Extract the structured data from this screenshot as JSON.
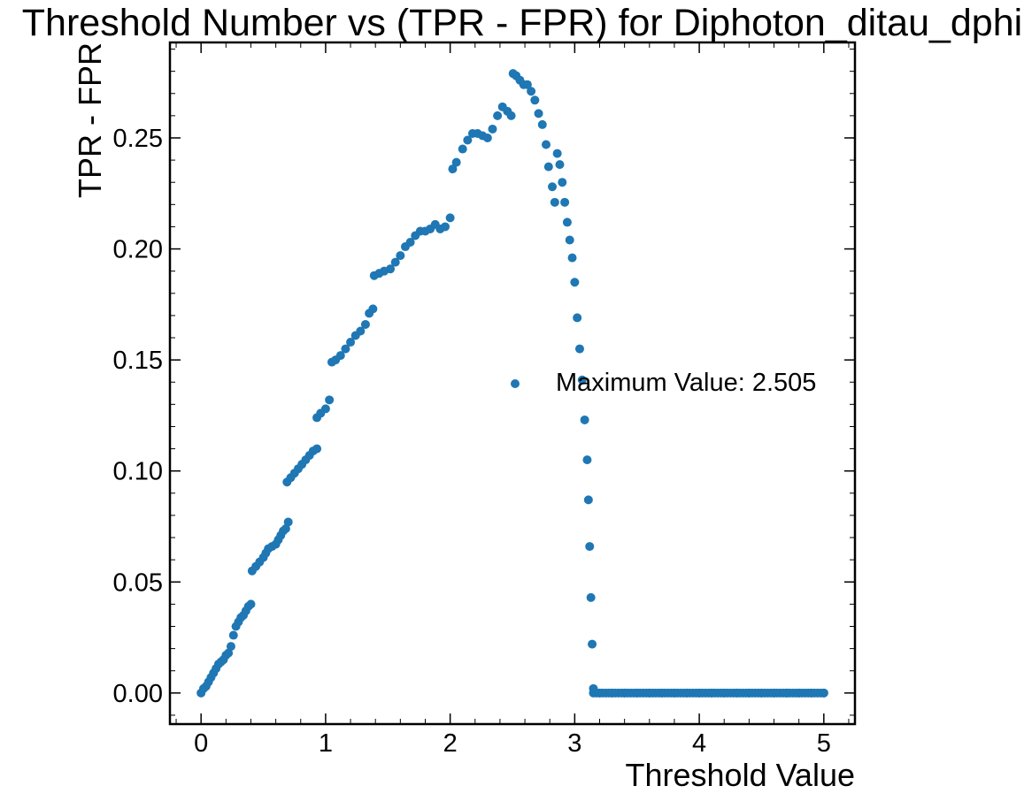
{
  "chart_data": {
    "type": "scatter",
    "title": "Threshold Number vs (TPR - FPR) for Diphoton_ditau_dphi",
    "xlabel": "Threshold Value",
    "ylabel": "TPR - FPR",
    "xlim": [
      -0.25,
      5.25
    ],
    "ylim": [
      -0.014,
      0.293
    ],
    "xticks": [
      "0",
      "1",
      "2",
      "3",
      "4",
      "5"
    ],
    "yticks": [
      "0.00",
      "0.05",
      "0.10",
      "0.15",
      "0.20",
      "0.25"
    ],
    "legend_position": "center-right",
    "grid": false,
    "marker_color": "#1f77b4",
    "series": [
      {
        "name": "Maximum Value: 2.505",
        "points": [
          [
            0.0,
            0.0
          ],
          [
            0.02,
            0.002
          ],
          [
            0.04,
            0.003
          ],
          [
            0.06,
            0.005
          ],
          [
            0.08,
            0.007
          ],
          [
            0.1,
            0.009
          ],
          [
            0.12,
            0.011
          ],
          [
            0.14,
            0.013
          ],
          [
            0.16,
            0.014
          ],
          [
            0.18,
            0.015
          ],
          [
            0.2,
            0.017
          ],
          [
            0.22,
            0.018
          ],
          [
            0.24,
            0.021
          ],
          [
            0.26,
            0.026
          ],
          [
            0.28,
            0.03
          ],
          [
            0.3,
            0.032
          ],
          [
            0.32,
            0.034
          ],
          [
            0.34,
            0.035
          ],
          [
            0.36,
            0.037
          ],
          [
            0.38,
            0.039
          ],
          [
            0.4,
            0.04
          ],
          [
            0.41,
            0.055
          ],
          [
            0.44,
            0.057
          ],
          [
            0.47,
            0.059
          ],
          [
            0.5,
            0.061
          ],
          [
            0.52,
            0.063
          ],
          [
            0.54,
            0.065
          ],
          [
            0.57,
            0.066
          ],
          [
            0.6,
            0.067
          ],
          [
            0.62,
            0.069
          ],
          [
            0.64,
            0.071
          ],
          [
            0.66,
            0.073
          ],
          [
            0.68,
            0.074
          ],
          [
            0.7,
            0.077
          ],
          [
            0.69,
            0.095
          ],
          [
            0.72,
            0.097
          ],
          [
            0.75,
            0.099
          ],
          [
            0.78,
            0.101
          ],
          [
            0.81,
            0.103
          ],
          [
            0.84,
            0.105
          ],
          [
            0.87,
            0.107
          ],
          [
            0.9,
            0.109
          ],
          [
            0.93,
            0.11
          ],
          [
            0.93,
            0.124
          ],
          [
            0.96,
            0.126
          ],
          [
            1.0,
            0.128
          ],
          [
            1.03,
            0.132
          ],
          [
            1.05,
            0.149
          ],
          [
            1.08,
            0.15
          ],
          [
            1.12,
            0.152
          ],
          [
            1.16,
            0.155
          ],
          [
            1.2,
            0.158
          ],
          [
            1.24,
            0.161
          ],
          [
            1.28,
            0.163
          ],
          [
            1.32,
            0.166
          ],
          [
            1.35,
            0.171
          ],
          [
            1.38,
            0.173
          ],
          [
            1.39,
            0.188
          ],
          [
            1.43,
            0.189
          ],
          [
            1.47,
            0.19
          ],
          [
            1.52,
            0.191
          ],
          [
            1.56,
            0.194
          ],
          [
            1.6,
            0.197
          ],
          [
            1.64,
            0.201
          ],
          [
            1.68,
            0.203
          ],
          [
            1.72,
            0.206
          ],
          [
            1.76,
            0.208
          ],
          [
            1.8,
            0.208
          ],
          [
            1.84,
            0.209
          ],
          [
            1.88,
            0.211
          ],
          [
            1.92,
            0.209
          ],
          [
            1.96,
            0.21
          ],
          [
            2.0,
            0.214
          ],
          [
            2.02,
            0.236
          ],
          [
            2.05,
            0.239
          ],
          [
            2.1,
            0.245
          ],
          [
            2.14,
            0.249
          ],
          [
            2.18,
            0.252
          ],
          [
            2.22,
            0.252
          ],
          [
            2.26,
            0.251
          ],
          [
            2.3,
            0.25
          ],
          [
            2.34,
            0.254
          ],
          [
            2.38,
            0.26
          ],
          [
            2.42,
            0.264
          ],
          [
            2.46,
            0.262
          ],
          [
            2.49,
            0.26
          ],
          [
            2.505,
            0.279
          ],
          [
            2.53,
            0.278
          ],
          [
            2.56,
            0.276
          ],
          [
            2.59,
            0.274
          ],
          [
            2.62,
            0.274
          ],
          [
            2.65,
            0.271
          ],
          [
            2.68,
            0.267
          ],
          [
            2.71,
            0.261
          ],
          [
            2.74,
            0.256
          ],
          [
            2.77,
            0.247
          ],
          [
            2.79,
            0.237
          ],
          [
            2.82,
            0.228
          ],
          [
            2.84,
            0.221
          ],
          [
            2.86,
            0.243
          ],
          [
            2.88,
            0.238
          ],
          [
            2.9,
            0.23
          ],
          [
            2.92,
            0.221
          ],
          [
            2.94,
            0.212
          ],
          [
            2.96,
            0.204
          ],
          [
            2.98,
            0.196
          ],
          [
            3.0,
            0.185
          ],
          [
            3.02,
            0.169
          ],
          [
            3.04,
            0.155
          ],
          [
            3.06,
            0.141
          ],
          [
            3.08,
            0.123
          ],
          [
            3.1,
            0.105
          ],
          [
            3.11,
            0.087
          ],
          [
            3.12,
            0.066
          ],
          [
            3.13,
            0.043
          ],
          [
            3.14,
            0.022
          ],
          [
            3.15,
            0.002
          ],
          [
            3.2,
            0.0
          ],
          [
            3.3,
            0.0
          ],
          [
            3.4,
            0.0
          ],
          [
            3.5,
            0.0
          ],
          [
            3.6,
            0.0
          ],
          [
            3.7,
            0.0
          ],
          [
            3.8,
            0.0
          ],
          [
            3.9,
            0.0
          ],
          [
            4.0,
            0.0
          ],
          [
            4.1,
            0.0
          ],
          [
            4.2,
            0.0
          ],
          [
            4.3,
            0.0
          ],
          [
            4.4,
            0.0
          ],
          [
            4.5,
            0.0
          ],
          [
            4.6,
            0.0
          ],
          [
            4.7,
            0.0
          ],
          [
            4.8,
            0.0
          ],
          [
            4.9,
            0.0
          ],
          [
            5.0,
            0.0
          ]
        ]
      }
    ]
  }
}
